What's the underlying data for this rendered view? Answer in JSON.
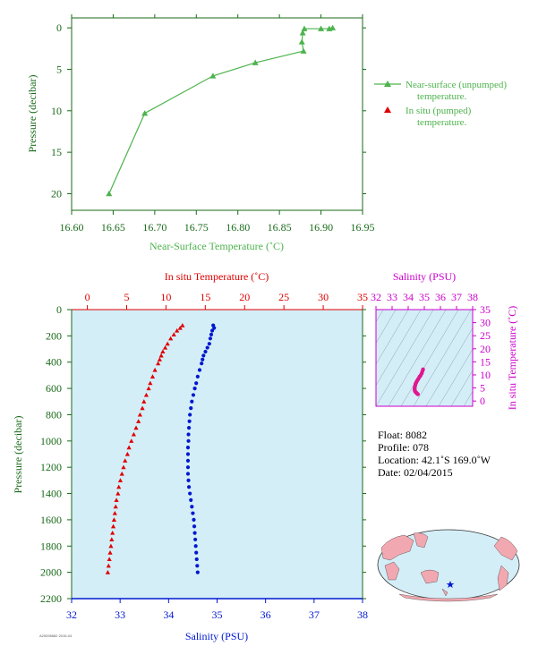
{
  "colors": {
    "green": "#4db34d",
    "red": "#e00000",
    "blue": "#0018d0",
    "magenta": "#cc00cc",
    "axis_dark": "#1a6a1a",
    "plot_bg": "#d4eef8",
    "land": "#f2a8b0"
  },
  "chart_data": [
    {
      "id": "near-surface",
      "type": "line",
      "xlabel": "Near-Surface Temperature (˚C)",
      "ylabel": "Pressure (decibar)",
      "xlim": [
        16.6,
        16.95
      ],
      "ylim": [
        22,
        -1.2
      ],
      "x_ticks": [
        "16.60",
        "16.65",
        "16.70",
        "16.75",
        "16.80",
        "16.85",
        "16.90",
        "16.95"
      ],
      "y_ticks": [
        "0",
        "5",
        "10",
        "15",
        "20"
      ],
      "series": [
        {
          "name": "Near-surface (unpumped) temperature.",
          "marker": "triangle",
          "points": [
            [
              16.645,
              20.0
            ],
            [
              16.688,
              10.3
            ],
            [
              16.77,
              5.8
            ],
            [
              16.821,
              4.2
            ],
            [
              16.879,
              2.8
            ],
            [
              16.877,
              1.7
            ],
            [
              16.878,
              0.6
            ],
            [
              16.88,
              0.1
            ],
            [
              16.9,
              0.1
            ],
            [
              16.91,
              0.1
            ],
            [
              16.914,
              0.0
            ]
          ]
        }
      ],
      "legend": [
        {
          "marker": "triangle-line",
          "color": "green",
          "label": "Near-surface (unpumped)",
          "label2": "temperature."
        },
        {
          "marker": "triangle",
          "color": "red",
          "label": "In situ (pumped)",
          "label2": "temperature."
        }
      ],
      "legend_position": "right"
    },
    {
      "id": "profile",
      "type": "scatter",
      "top_xlabel": "In situ Temperature (˚C)",
      "bottom_xlabel": "Salinity (PSU)",
      "ylabel": "Pressure (decibar)",
      "temp_lim": [
        -2,
        35
      ],
      "sal_lim": [
        32,
        38
      ],
      "ylim": [
        0,
        2200
      ],
      "temp_ticks": [
        "0",
        "5",
        "10",
        "15",
        "20",
        "25",
        "30",
        "35"
      ],
      "sal_ticks": [
        "32",
        "33",
        "34",
        "35",
        "36",
        "37",
        "38"
      ],
      "y_ticks": [
        "0",
        "200",
        "400",
        "600",
        "800",
        "1000",
        "1200",
        "1400",
        "1600",
        "1800",
        "2000",
        "2200"
      ],
      "temperature": {
        "name": "In situ Temperature",
        "points": [
          [
            12.1,
            120
          ],
          [
            11.8,
            140
          ],
          [
            11.4,
            160
          ],
          [
            11.0,
            190
          ],
          [
            10.6,
            220
          ],
          [
            10.2,
            260
          ],
          [
            9.9,
            290
          ],
          [
            9.6,
            320
          ],
          [
            9.4,
            350
          ],
          [
            9.2,
            380
          ],
          [
            9.0,
            410
          ],
          [
            8.6,
            460
          ],
          [
            8.3,
            510
          ],
          [
            8.0,
            560
          ],
          [
            7.8,
            600
          ],
          [
            7.5,
            650
          ],
          [
            7.2,
            700
          ],
          [
            7.0,
            750
          ],
          [
            6.7,
            800
          ],
          [
            6.5,
            850
          ],
          [
            6.2,
            900
          ],
          [
            5.9,
            950
          ],
          [
            5.6,
            1000
          ],
          [
            5.3,
            1050
          ],
          [
            5.1,
            1100
          ],
          [
            4.8,
            1150
          ],
          [
            4.6,
            1200
          ],
          [
            4.4,
            1250
          ],
          [
            4.2,
            1300
          ],
          [
            4.0,
            1350
          ],
          [
            3.9,
            1400
          ],
          [
            3.7,
            1450
          ],
          [
            3.6,
            1500
          ],
          [
            3.5,
            1550
          ],
          [
            3.4,
            1600
          ],
          [
            3.3,
            1650
          ],
          [
            3.2,
            1700
          ],
          [
            3.1,
            1750
          ],
          [
            3.0,
            1800
          ],
          [
            2.9,
            1850
          ],
          [
            2.8,
            1900
          ],
          [
            2.7,
            1950
          ],
          [
            2.6,
            2000
          ]
        ]
      },
      "salinity": {
        "name": "Salinity",
        "points": [
          [
            34.92,
            120
          ],
          [
            34.94,
            140
          ],
          [
            34.9,
            160
          ],
          [
            34.88,
            190
          ],
          [
            34.86,
            220
          ],
          [
            34.84,
            260
          ],
          [
            34.8,
            290
          ],
          [
            34.76,
            320
          ],
          [
            34.72,
            350
          ],
          [
            34.7,
            380
          ],
          [
            34.68,
            410
          ],
          [
            34.64,
            460
          ],
          [
            34.6,
            510
          ],
          [
            34.57,
            560
          ],
          [
            34.54,
            600
          ],
          [
            34.51,
            650
          ],
          [
            34.48,
            700
          ],
          [
            34.46,
            750
          ],
          [
            34.44,
            800
          ],
          [
            34.43,
            850
          ],
          [
            34.42,
            900
          ],
          [
            34.41,
            950
          ],
          [
            34.41,
            1000
          ],
          [
            34.4,
            1050
          ],
          [
            34.4,
            1100
          ],
          [
            34.4,
            1150
          ],
          [
            34.4,
            1200
          ],
          [
            34.4,
            1250
          ],
          [
            34.41,
            1300
          ],
          [
            34.42,
            1350
          ],
          [
            34.44,
            1400
          ],
          [
            34.46,
            1450
          ],
          [
            34.48,
            1500
          ],
          [
            34.5,
            1550
          ],
          [
            34.52,
            1600
          ],
          [
            34.53,
            1650
          ],
          [
            34.54,
            1700
          ],
          [
            34.55,
            1750
          ],
          [
            34.56,
            1800
          ],
          [
            34.57,
            1850
          ],
          [
            34.58,
            1900
          ],
          [
            34.59,
            1950
          ],
          [
            34.6,
            2000
          ]
        ]
      }
    },
    {
      "id": "ts-diagram",
      "type": "scatter",
      "top_xlabel": "Salinity (PSU)",
      "right_ylabel": "In situ Temperature (˚C)",
      "xlim": [
        32,
        38
      ],
      "ylim": [
        -2,
        35
      ],
      "x_ticks": [
        "32",
        "33",
        "34",
        "35",
        "36",
        "37",
        "38"
      ],
      "y_ticks": [
        "0",
        "5",
        "10",
        "15",
        "20",
        "25",
        "30",
        "35"
      ],
      "points": [
        [
          34.92,
          12.1
        ],
        [
          34.88,
          11.4
        ],
        [
          34.84,
          10.6
        ],
        [
          34.78,
          9.9
        ],
        [
          34.72,
          9.4
        ],
        [
          34.68,
          9.0
        ],
        [
          34.62,
          8.4
        ],
        [
          34.57,
          7.9
        ],
        [
          34.52,
          7.4
        ],
        [
          34.48,
          6.9
        ],
        [
          34.45,
          6.4
        ],
        [
          34.43,
          5.9
        ],
        [
          34.41,
          5.4
        ],
        [
          34.4,
          4.9
        ],
        [
          34.4,
          4.4
        ],
        [
          34.41,
          4.0
        ],
        [
          34.43,
          3.7
        ],
        [
          34.46,
          3.4
        ],
        [
          34.5,
          3.2
        ],
        [
          34.53,
          3.0
        ],
        [
          34.56,
          2.8
        ],
        [
          34.6,
          2.6
        ]
      ]
    }
  ],
  "info": {
    "float": "Float:  8082",
    "profile": "Profile:  078",
    "location": "Location:  42.1˚S  169.0˚W",
    "date": "Date:  02/04/2015"
  },
  "footer_code": "A20095582 2015-04"
}
